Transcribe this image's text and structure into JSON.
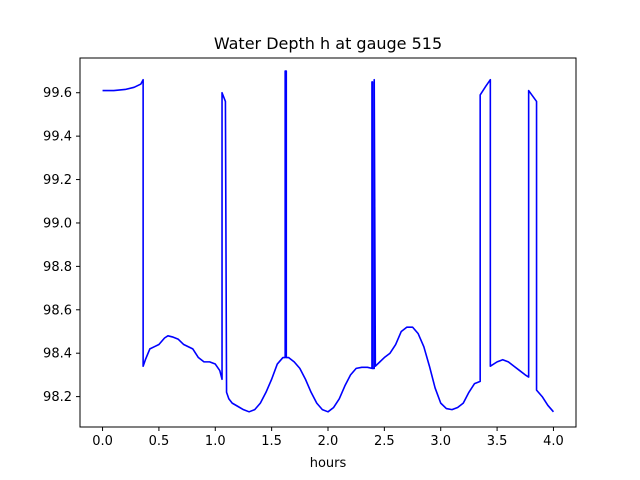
{
  "chart_data": {
    "type": "line",
    "title": "Water Depth h at gauge 515",
    "xlabel": "hours",
    "ylabel": "",
    "xlim": [
      -0.2,
      4.2
    ],
    "ylim": [
      98.06,
      99.76
    ],
    "x_ticks": [
      0.0,
      0.5,
      1.0,
      1.5,
      2.0,
      2.5,
      3.0,
      3.5,
      4.0
    ],
    "x_tick_labels": [
      "0.0",
      "0.5",
      "1.0",
      "1.5",
      "2.0",
      "2.5",
      "3.0",
      "3.5",
      "4.0"
    ],
    "y_ticks": [
      98.2,
      98.4,
      98.6,
      98.8,
      99.0,
      99.2,
      99.4,
      99.6
    ],
    "y_tick_labels": [
      "98.2",
      "98.4",
      "98.6",
      "98.8",
      "99.0",
      "99.2",
      "99.4",
      "99.6"
    ],
    "grid": false,
    "legend": "none",
    "series": [
      {
        "color": "#0000ff",
        "x": [
          0.0,
          0.1,
          0.2,
          0.28,
          0.34,
          0.36,
          0.36,
          0.38,
          0.42,
          0.46,
          0.5,
          0.55,
          0.58,
          0.62,
          0.67,
          0.72,
          0.8,
          0.85,
          0.9,
          0.95,
          1.0,
          1.04,
          1.06,
          1.06,
          1.09,
          1.09,
          1.1,
          1.12,
          1.15,
          1.2,
          1.25,
          1.3,
          1.35,
          1.4,
          1.45,
          1.5,
          1.55,
          1.6,
          1.62,
          1.62,
          1.63,
          1.63,
          1.65,
          1.7,
          1.75,
          1.8,
          1.85,
          1.9,
          1.95,
          2.0,
          2.05,
          2.1,
          2.15,
          2.2,
          2.25,
          2.3,
          2.35,
          2.39,
          2.39,
          2.395,
          2.395,
          2.41,
          2.41,
          2.42,
          2.46,
          2.5,
          2.55,
          2.6,
          2.65,
          2.7,
          2.75,
          2.8,
          2.85,
          2.9,
          2.95,
          3.0,
          3.05,
          3.1,
          3.15,
          3.2,
          3.25,
          3.3,
          3.35,
          3.35,
          3.4,
          3.44,
          3.44,
          3.5,
          3.55,
          3.6,
          3.65,
          3.7,
          3.75,
          3.78,
          3.78,
          3.85,
          3.85,
          3.9,
          3.95,
          4.0
        ],
        "y": [
          99.61,
          99.61,
          99.615,
          99.625,
          99.64,
          99.66,
          98.34,
          98.37,
          98.42,
          98.43,
          98.44,
          98.47,
          98.48,
          98.475,
          98.465,
          98.44,
          98.42,
          98.38,
          98.36,
          98.36,
          98.35,
          98.32,
          98.28,
          99.6,
          99.56,
          99.56,
          98.22,
          98.19,
          98.17,
          98.155,
          98.14,
          98.13,
          98.14,
          98.17,
          98.22,
          98.28,
          98.35,
          98.38,
          98.38,
          99.7,
          99.7,
          98.38,
          98.38,
          98.36,
          98.33,
          98.28,
          98.22,
          98.17,
          98.14,
          98.13,
          98.15,
          98.19,
          98.25,
          98.3,
          98.33,
          98.335,
          98.335,
          98.33,
          99.65,
          99.65,
          98.33,
          98.33,
          99.66,
          98.34,
          98.36,
          98.38,
          98.4,
          98.44,
          98.5,
          98.52,
          98.52,
          98.49,
          98.43,
          98.34,
          98.24,
          98.17,
          98.145,
          98.14,
          98.15,
          98.17,
          98.22,
          98.26,
          98.27,
          99.59,
          99.63,
          99.66,
          98.34,
          98.36,
          98.37,
          98.36,
          98.34,
          98.32,
          98.3,
          98.29,
          99.61,
          99.56,
          98.23,
          98.2,
          98.16,
          98.13
        ]
      }
    ]
  }
}
